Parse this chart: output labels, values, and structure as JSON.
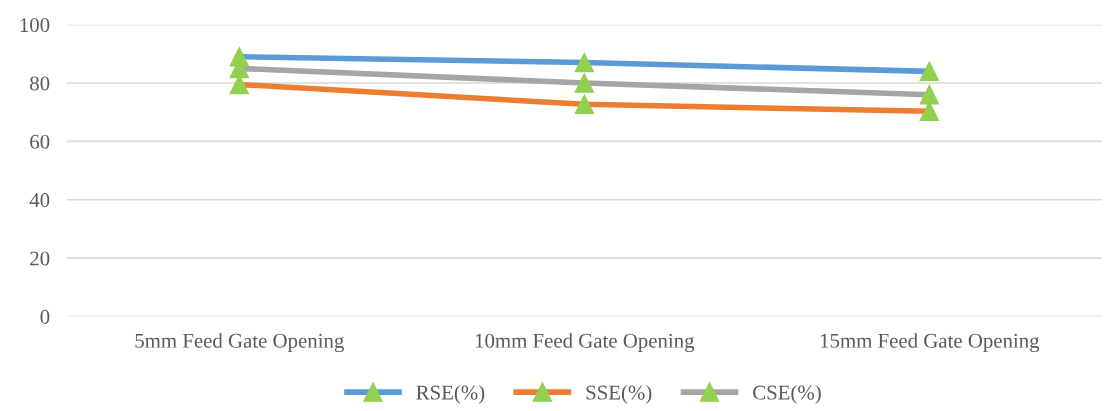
{
  "chart_data": {
    "type": "line",
    "categories": [
      "5mm Feed Gate Opening",
      "10mm Feed Gate Opening",
      "15mm Feed Gate Opening"
    ],
    "series": [
      {
        "name": "RSE(%)",
        "color": "#5b9bd5",
        "colors": [
          "#92d050",
          "#92d050",
          "#92d050"
        ],
        "values": [
          89,
          87,
          84
        ]
      },
      {
        "name": "SSE(%)",
        "color": "#ed7d31",
        "colors": [
          "#92d050",
          "#92d050",
          "#92d050"
        ],
        "values": [
          79.5,
          72.7,
          70.3
        ]
      },
      {
        "name": "CSE(%)",
        "color": "#a5a5a5",
        "colors": [
          "#92d050",
          "#92d050",
          "#92d050"
        ],
        "values": [
          85,
          80,
          76
        ]
      }
    ],
    "ylim": [
      0,
      100
    ],
    "yticks": [
      0,
      20,
      40,
      60,
      80,
      100
    ],
    "grid": "y",
    "legend": "bottom",
    "marker": "triangle",
    "line_style": "solid"
  }
}
